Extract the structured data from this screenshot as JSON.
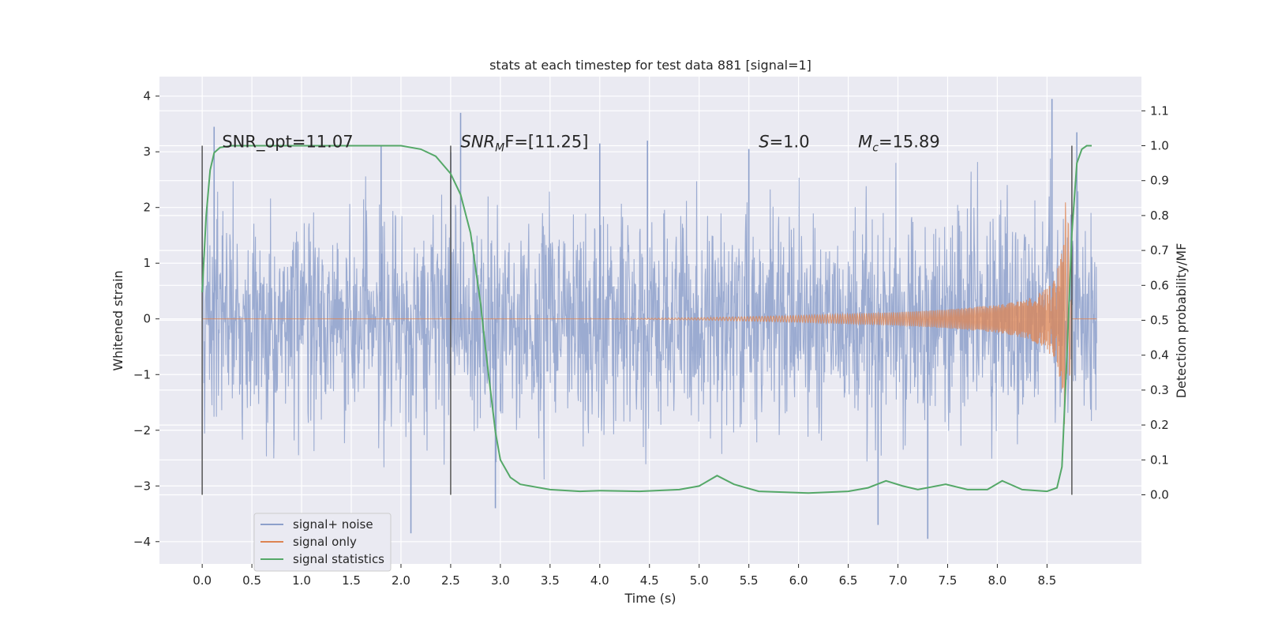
{
  "chart_data": {
    "type": "line",
    "title": "stats at each timestep for test data 881 [signal=1]",
    "xlabel": "Time (s)",
    "ylabel": "Whitened strain",
    "y2label": "Detection probability/MF",
    "xlim": [
      -0.43,
      9.45
    ],
    "ylim": [
      -4.4,
      4.35
    ],
    "y2lim": [
      -0.198,
      1.198
    ],
    "xticks": [
      "0.0",
      "0.5",
      "1.0",
      "1.5",
      "2.0",
      "2.5",
      "3.0",
      "3.5",
      "4.0",
      "4.5",
      "5.0",
      "5.5",
      "6.0",
      "6.5",
      "7.0",
      "7.5",
      "8.0",
      "8.5"
    ],
    "yticks": [
      "4",
      "3",
      "2",
      "1",
      "0",
      "−1",
      "−2",
      "−3",
      "−4"
    ],
    "y2ticks": [
      "1.1",
      "1.0",
      "0.9",
      "0.8",
      "0.7",
      "0.6",
      "0.5",
      "0.4",
      "0.3",
      "0.2",
      "0.1",
      "0.0"
    ],
    "grid": true,
    "legend_position": "lower-left",
    "colors": {
      "background": "#eaeaf2",
      "grid": "#ffffff",
      "noise": "#8da0cb",
      "signal": "#dd8452",
      "stats": "#55a868",
      "vline": "#555555"
    },
    "annotations": [
      {
        "before": "SNR_opt=11.07",
        "italic": "",
        "sub": "",
        "after": ""
      },
      {
        "before": "",
        "italic": "SNR",
        "sub": "M",
        "after": "F=[11.25]"
      },
      {
        "before": "",
        "italic": "S",
        "sub": "",
        "after": "=1.0"
      },
      {
        "before": "",
        "italic": "M",
        "sub": "c",
        "after": "=15.89"
      }
    ],
    "vlines_x": [
      0.0,
      2.5,
      8.75
    ],
    "series": [
      {
        "name": "signal+ noise",
        "axis": "left",
        "x_range": [
          0.0,
          9.0
        ],
        "envelope": [
          -2.3,
          2.3
        ],
        "peaks": [
          {
            "x": 0.12,
            "y": 3.45
          },
          {
            "x": 1.8,
            "y": 3.1
          },
          {
            "x": 2.1,
            "y": -3.85
          },
          {
            "x": 2.6,
            "y": 3.7
          },
          {
            "x": 2.95,
            "y": -3.4
          },
          {
            "x": 4.0,
            "y": 3.15
          },
          {
            "x": 4.48,
            "y": 3.2
          },
          {
            "x": 5.5,
            "y": 3.05
          },
          {
            "x": 6.8,
            "y": -3.7
          },
          {
            "x": 7.3,
            "y": -3.95
          },
          {
            "x": 8.55,
            "y": 3.95
          },
          {
            "x": 8.8,
            "y": 3.35
          }
        ]
      },
      {
        "name": "signal only",
        "axis": "left",
        "x": [
          0.0,
          4.0,
          5.0,
          6.0,
          7.0,
          7.5,
          8.0,
          8.3,
          8.5,
          8.6,
          8.65,
          8.7,
          8.72,
          8.75
        ],
        "amplitude": [
          0.0,
          0.0,
          0.02,
          0.06,
          0.12,
          0.17,
          0.25,
          0.35,
          0.55,
          0.85,
          1.3,
          2.45,
          1.5,
          0.0
        ]
      },
      {
        "name": "signal statistics",
        "axis": "right",
        "x": [
          0.0,
          0.04,
          0.08,
          0.12,
          0.18,
          0.3,
          1.0,
          2.0,
          2.2,
          2.35,
          2.5,
          2.6,
          2.7,
          2.8,
          2.85,
          2.9,
          2.95,
          3.0,
          3.1,
          3.2,
          3.5,
          3.8,
          4.0,
          4.4,
          4.8,
          5.0,
          5.18,
          5.35,
          5.6,
          6.1,
          6.5,
          6.7,
          6.88,
          7.05,
          7.2,
          7.48,
          7.7,
          7.9,
          8.05,
          8.25,
          8.5,
          8.6,
          8.65,
          8.7,
          8.75,
          8.8,
          8.85,
          8.9,
          8.95
        ],
        "y": [
          0.58,
          0.8,
          0.93,
          0.98,
          0.995,
          1.0,
          1.0,
          1.0,
          0.99,
          0.97,
          0.92,
          0.86,
          0.75,
          0.55,
          0.42,
          0.3,
          0.18,
          0.1,
          0.05,
          0.03,
          0.015,
          0.01,
          0.012,
          0.01,
          0.015,
          0.025,
          0.055,
          0.03,
          0.01,
          0.005,
          0.01,
          0.02,
          0.04,
          0.025,
          0.015,
          0.03,
          0.015,
          0.015,
          0.04,
          0.015,
          0.01,
          0.02,
          0.08,
          0.4,
          0.75,
          0.95,
          0.99,
          1.0,
          1.0
        ]
      }
    ]
  }
}
